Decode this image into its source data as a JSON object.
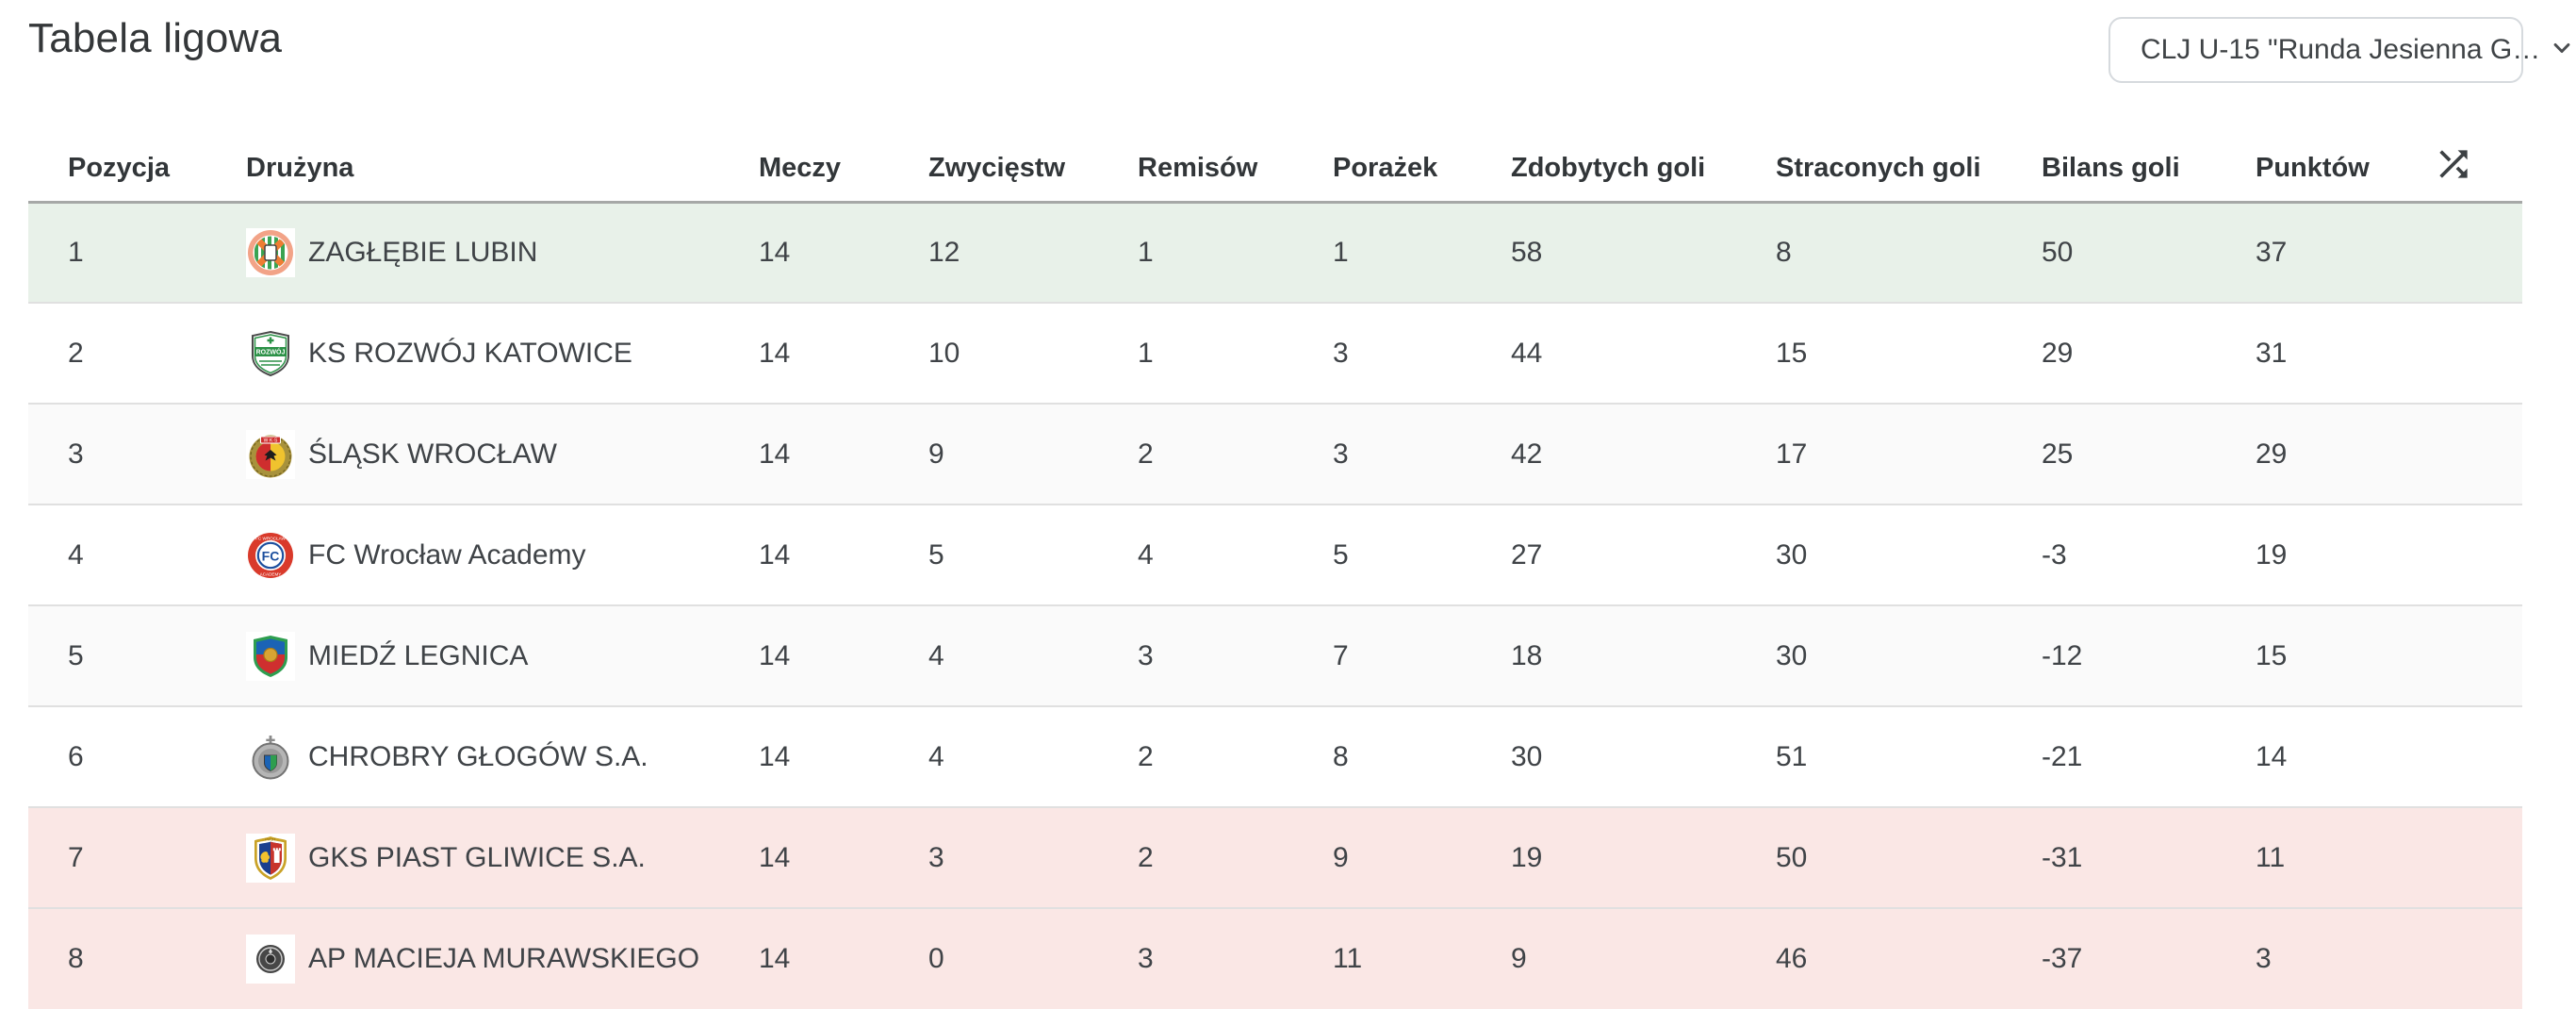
{
  "page": {
    "title": "Tabela ligowa"
  },
  "competition_filter": {
    "selected": "CLJ U-15 \"Runda Jesienna G…",
    "icon": "chevron-down-icon"
  },
  "table": {
    "columns": [
      "Pozycja",
      "Drużyna",
      "Meczy",
      "Zwycięstw",
      "Remisów",
      "Porażek",
      "Zdobytych goli",
      "Straconych goli",
      "Bilans goli",
      "Punktów"
    ],
    "shuffle_icon": "shuffle-icon",
    "zone_colors": {
      "promotion": "#e8f1e9",
      "relegation": "#fae7e5",
      "stripe": "#fafafa",
      "plain": "#ffffff"
    },
    "rows": [
      {
        "position": "1",
        "team": "ZAGŁĘBIE LUBIN",
        "logo": "zaglebie-lubin",
        "matches": "14",
        "wins": "12",
        "draws": "1",
        "losses": "1",
        "goals_for": "58",
        "goals_against": "8",
        "goal_balance": "50",
        "points": "37",
        "zone": "promotion"
      },
      {
        "position": "2",
        "team": "KS ROZWÓJ KATOWICE",
        "logo": "rozwoj-katowice",
        "matches": "14",
        "wins": "10",
        "draws": "1",
        "losses": "3",
        "goals_for": "44",
        "goals_against": "15",
        "goal_balance": "29",
        "points": "31",
        "zone": null
      },
      {
        "position": "3",
        "team": "ŚLĄSK WROCŁAW",
        "logo": "slask-wroclaw",
        "matches": "14",
        "wins": "9",
        "draws": "2",
        "losses": "3",
        "goals_for": "42",
        "goals_against": "17",
        "goal_balance": "25",
        "points": "29",
        "zone": null
      },
      {
        "position": "4",
        "team": "FC Wrocław Academy",
        "logo": "fc-wroclaw-academy",
        "matches": "14",
        "wins": "5",
        "draws": "4",
        "losses": "5",
        "goals_for": "27",
        "goals_against": "30",
        "goal_balance": "-3",
        "points": "19",
        "zone": null
      },
      {
        "position": "5",
        "team": "MIEDŹ LEGNICA",
        "logo": "miedz-legnica",
        "matches": "14",
        "wins": "4",
        "draws": "3",
        "losses": "7",
        "goals_for": "18",
        "goals_against": "30",
        "goal_balance": "-12",
        "points": "15",
        "zone": null
      },
      {
        "position": "6",
        "team": "CHROBRY GŁOGÓW S.A.",
        "logo": "chrobry-glogow",
        "matches": "14",
        "wins": "4",
        "draws": "2",
        "losses": "8",
        "goals_for": "30",
        "goals_against": "51",
        "goal_balance": "-21",
        "points": "14",
        "zone": null
      },
      {
        "position": "7",
        "team": "GKS PIAST GLIWICE S.A.",
        "logo": "piast-gliwice",
        "matches": "14",
        "wins": "3",
        "draws": "2",
        "losses": "9",
        "goals_for": "19",
        "goals_against": "50",
        "goal_balance": "-31",
        "points": "11",
        "zone": "relegation"
      },
      {
        "position": "8",
        "team": "AP MACIEJA MURAWSKIEGO",
        "logo": "ap-macieja-murawskiego",
        "matches": "14",
        "wins": "0",
        "draws": "3",
        "losses": "11",
        "goals_for": "9",
        "goals_against": "46",
        "goal_balance": "-37",
        "points": "3",
        "zone": "relegation"
      }
    ],
    "logo_colors": {
      "zaglebie-lubin": [
        "#f2a387",
        "#3aa352",
        "#ef7d33",
        "#ffffff"
      ],
      "rozwoj-katowice": [
        "#ffffff",
        "#2c9147",
        "#4a4a4a"
      ],
      "slask-wroclaw": [
        "#a8923c",
        "#cf2e2e",
        "#f0c32e",
        "#1d1d1d"
      ],
      "fc-wroclaw-academy": [
        "#d93a2b",
        "#ffffff",
        "#1c4f9e"
      ],
      "miedz-legnica": [
        "#2e9e4f",
        "#1b63b5",
        "#cf2f2f",
        "#d8a433"
      ],
      "chrobry-glogow": [
        "#b5b5b5",
        "#1b63b5",
        "#2e9e4f",
        "#8b8b8b"
      ],
      "piast-gliwice": [
        "#c9a227",
        "#1a3f8f",
        "#c8342c",
        "#f2c12e",
        "#ffffff"
      ],
      "ap-macieja-murawskiego": [
        "#474747",
        "#cfcfcf"
      ]
    }
  }
}
